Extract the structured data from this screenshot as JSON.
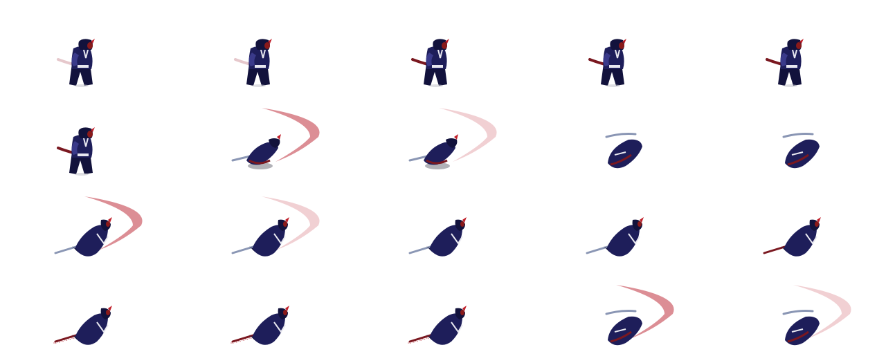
{
  "sprite_sheet": {
    "columns": 5,
    "rows": 4,
    "colors": {
      "background": "#ffffff",
      "robe": "#1e1e5a",
      "robe_shadow": "#12123c",
      "robe_highlight": "#3a3a8a",
      "mask": "#8a1a1a",
      "horn": "#c0202a",
      "trim": "#e8e8f0",
      "blade": "#8a96b4",
      "blade_dark": "#3c4660",
      "scabbard": "#7a1820",
      "slash_trail": "#d67a82",
      "slash_trail_faded": "#e8b0b5"
    },
    "frames": [
      {
        "pose": "stand",
        "blade": "faded",
        "slash": "none",
        "blur": false
      },
      {
        "pose": "stand",
        "blade": "faded",
        "slash": "none",
        "blur": false
      },
      {
        "pose": "stand",
        "blade": "red",
        "slash": "none",
        "blur": false
      },
      {
        "pose": "stand",
        "blade": "red",
        "slash": "none",
        "blur": false
      },
      {
        "pose": "stand",
        "blade": "red",
        "slash": "none",
        "blur": false
      },
      {
        "pose": "stand",
        "blade": "red",
        "slash": "none",
        "blur": false
      },
      {
        "pose": "dash",
        "blade": "steel",
        "slash": "strong",
        "blur": true
      },
      {
        "pose": "dash",
        "blade": "steel",
        "slash": "faded",
        "blur": true
      },
      {
        "pose": "spin",
        "blade": "steel",
        "slash": "none",
        "blur": false
      },
      {
        "pose": "spin",
        "blade": "steel",
        "slash": "none",
        "blur": false
      },
      {
        "pose": "crouch",
        "blade": "steel",
        "slash": "strong",
        "blur": false
      },
      {
        "pose": "crouch",
        "blade": "steel",
        "slash": "faded",
        "blur": false
      },
      {
        "pose": "crouch",
        "blade": "steel",
        "slash": "none",
        "blur": false
      },
      {
        "pose": "crouch",
        "blade": "steel",
        "slash": "none",
        "blur": false
      },
      {
        "pose": "crouch",
        "blade": "red",
        "slash": "none",
        "blur": false
      },
      {
        "pose": "crouch",
        "blade": "red-sparkle",
        "slash": "none",
        "blur": false
      },
      {
        "pose": "crouch",
        "blade": "red-sparkle",
        "slash": "none",
        "blur": false
      },
      {
        "pose": "crouch",
        "blade": "red-sparkle",
        "slash": "none",
        "blur": false
      },
      {
        "pose": "spin",
        "blade": "steel",
        "slash": "strong",
        "blur": false
      },
      {
        "pose": "spin",
        "blade": "steel",
        "slash": "faded",
        "blur": false
      }
    ]
  }
}
